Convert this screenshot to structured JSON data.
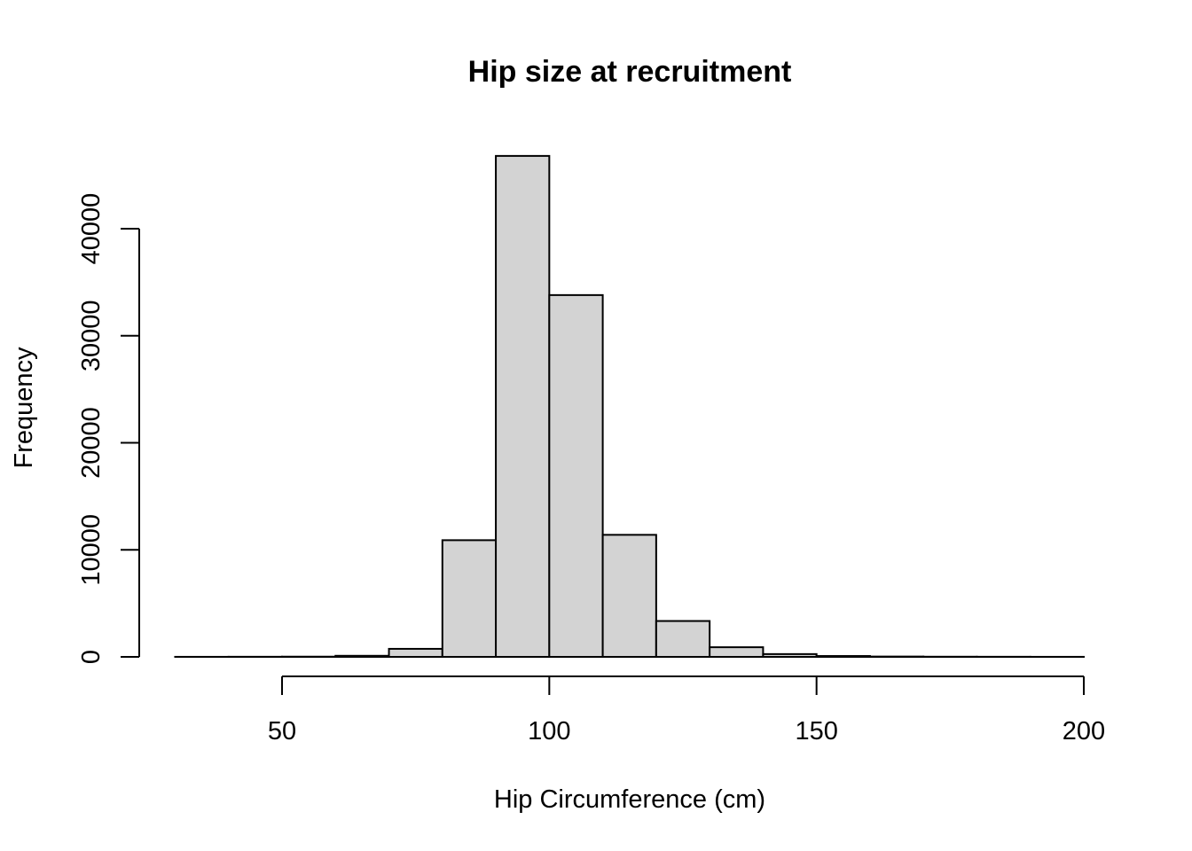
{
  "chart_data": {
    "type": "bar",
    "title": "Hip size at recruitment",
    "xlabel": "Hip Circumference (cm)",
    "ylabel": "Frequency",
    "bin_edges": [
      30,
      40,
      50,
      60,
      70,
      80,
      90,
      100,
      110,
      120,
      130,
      140,
      150,
      160,
      170,
      180,
      190,
      200
    ],
    "values": [
      5,
      10,
      20,
      100,
      750,
      10900,
      46800,
      33800,
      11400,
      3350,
      900,
      260,
      80,
      30,
      15,
      10,
      5
    ],
    "xlim": [
      50,
      200
    ],
    "ylim": [
      0,
      40000
    ],
    "x_ticks": [
      50,
      100,
      150,
      200
    ],
    "y_ticks": [
      0,
      10000,
      20000,
      30000,
      40000
    ],
    "bar_color": "#d3d3d3",
    "edge_color": "#000000",
    "grid": false
  }
}
